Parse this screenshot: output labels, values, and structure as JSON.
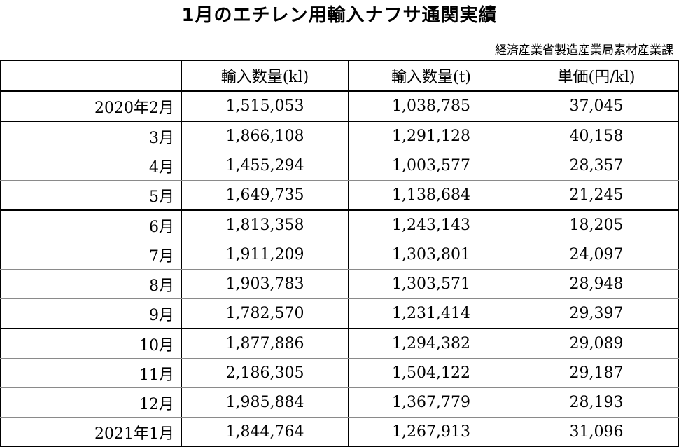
{
  "title": "1月のエチレン用輸入ナフサ通関実績",
  "source": "経済産業省製造産業局素材産業課",
  "table": {
    "headers": [
      "",
      "輸入数量(kl)",
      "輸入数量(t)",
      "単価(円/kl)"
    ],
    "rows": [
      {
        "month": "2020年2月",
        "kl": "1,515,053",
        "t": "1,038,785",
        "price": "37,045"
      },
      {
        "month": "3月",
        "kl": "1,866,108",
        "t": "1,291,128",
        "price": "40,158"
      },
      {
        "month": "4月",
        "kl": "1,455,294",
        "t": "1,003,577",
        "price": "28,357"
      },
      {
        "month": "5月",
        "kl": "1,649,735",
        "t": "1,138,684",
        "price": "21,245"
      },
      {
        "month": "6月",
        "kl": "1,813,358",
        "t": "1,243,143",
        "price": "18,205"
      },
      {
        "month": "7月",
        "kl": "1,911,209",
        "t": "1,303,801",
        "price": "24,097"
      },
      {
        "month": "8月",
        "kl": "1,903,783",
        "t": "1,303,571",
        "price": "28,948"
      },
      {
        "month": "9月",
        "kl": "1,782,570",
        "t": "1,231,414",
        "price": "29,397"
      },
      {
        "month": "10月",
        "kl": "1,877,886",
        "t": "1,294,382",
        "price": "29,089"
      },
      {
        "month": "11月",
        "kl": "2,186,305",
        "t": "1,504,122",
        "price": "29,187"
      },
      {
        "month": "12月",
        "kl": "1,985,884",
        "t": "1,367,779",
        "price": "28,193"
      },
      {
        "month": "2021年1月",
        "kl": "1,844,764",
        "t": "1,267,913",
        "price": "31,096"
      }
    ]
  }
}
